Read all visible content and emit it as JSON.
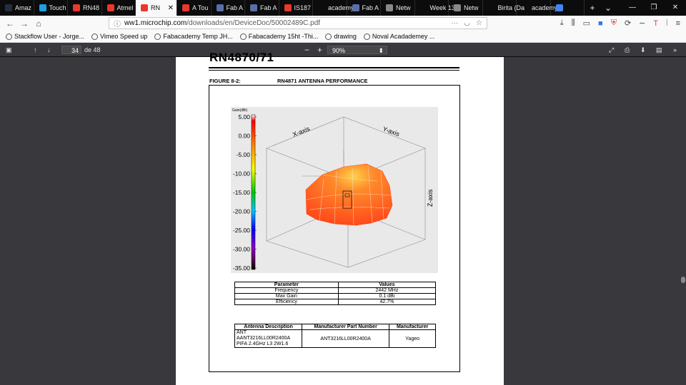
{
  "tabs": [
    {
      "label": "Amaz",
      "icon": "amazon-icon",
      "color": "#232f3e"
    },
    {
      "label": "Touch",
      "icon": "touch-icon",
      "color": "#1ba1e2"
    },
    {
      "label": "RN48",
      "icon": "microchip-icon",
      "color": "#e8392c"
    },
    {
      "label": "Atmel",
      "icon": "atmel-icon",
      "color": "#e8392c"
    },
    {
      "label": "RN",
      "icon": "microchip-icon",
      "color": "#e8392c",
      "active": true
    },
    {
      "label": "A Tou",
      "icon": "m-icon",
      "color": "#e8392c"
    },
    {
      "label": "Fab A",
      "icon": "fab-icon",
      "color": "#5a6ea8"
    },
    {
      "label": "Fab A",
      "icon": "fab-icon",
      "color": "#5a6ea8"
    },
    {
      "label": "IS187",
      "icon": "microchip-icon",
      "color": "#e8392c"
    },
    {
      "label": "academy.",
      "icon": "none",
      "color": "#0c0c0d"
    },
    {
      "label": "Fab A",
      "icon": "fab-icon",
      "color": "#5a6ea8"
    },
    {
      "label": "Netw",
      "icon": "doc-icon",
      "color": "#888888"
    },
    {
      "label": "Week 13:",
      "icon": "none",
      "color": "#0c0c0d"
    },
    {
      "label": "Netw",
      "icon": "doc-icon",
      "color": "#888888"
    },
    {
      "label": "Birita (Da",
      "icon": "none",
      "color": "#0c0c0d"
    },
    {
      "label": "academy.",
      "icon": "none",
      "color": "#0c0c0d"
    },
    {
      "label": "",
      "icon": "chrome-icon",
      "color": "#4285f4"
    }
  ],
  "nav": {
    "url_host": "ww1.microchip.com",
    "url_path": "/downloads/en/DeviceDoc/50002489C.pdf",
    "bookmarks": [
      {
        "label": "Stackflow User - Jorge...",
        "icon": "stackoverflow-icon"
      },
      {
        "label": "Vimeo Speed up",
        "icon": "globe-icon"
      },
      {
        "label": "Fabacademy Temp JH...",
        "icon": "globe-icon"
      },
      {
        "label": "Fabacademy 15ht -Thi...",
        "icon": "globe-icon"
      },
      {
        "label": "drawing",
        "icon": "drawing-icon"
      },
      {
        "label": "Noval Acadademey ...",
        "icon": "noval-icon"
      }
    ]
  },
  "pdf": {
    "page_number": "34",
    "page_count_label": "de 48",
    "zoom": "90%"
  },
  "document": {
    "heading": "RN4870/71",
    "figure_label": "FIGURE 8-2:",
    "figure_title": "RN4871 ANTENNA PERFORMANCE",
    "plot": {
      "colorbar_unit": "Gain(dBi)",
      "colorbar_ticks": [
        "5.00",
        "0.00",
        "-5.00",
        "-10.00",
        "-15.00",
        "-20.00",
        "-25.00",
        "-30.00",
        "-35.00"
      ],
      "x_axis": "X-axis",
      "y_axis": "Y-axis",
      "z_axis": "Z-axis"
    },
    "param_table": {
      "headers": [
        "Parameter",
        "Values"
      ],
      "rows": [
        [
          "Frequency",
          "2442 MHz"
        ],
        [
          "Max Gain",
          "0.1 dBi"
        ],
        [
          "Efficiency",
          "42.7%"
        ]
      ]
    },
    "antenna_table": {
      "headers": [
        "Antenna Description",
        "Manufacturer Part Number",
        "Manufacturer"
      ],
      "desc_line1": "ANT AANT3216LL00R2400A",
      "desc_line2": "PIFA 2.4GHz L3 2W1.6",
      "part_number": "ANT3216LL00R2400A",
      "manufacturer": "Yageo"
    }
  }
}
